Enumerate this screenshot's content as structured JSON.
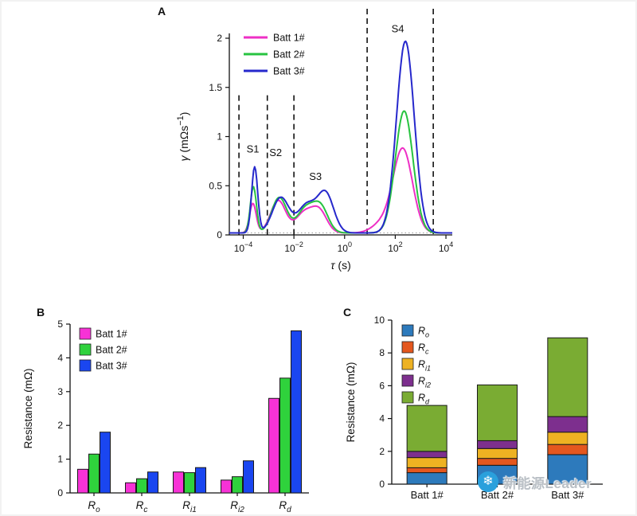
{
  "panel_labels": {
    "A": "A",
    "B": "B",
    "C": "C"
  },
  "watermark": {
    "text": "新能源Leader",
    "icon": "snowflake",
    "icon_color": "#2aa0dc",
    "text_color": "#b9bfc5"
  },
  "chart_data": [
    {
      "panel": "A",
      "type": "line",
      "xlabel_parts": [
        {
          "text": "τ ",
          "italic": true
        },
        {
          "text": "(s)"
        }
      ],
      "ylabel_parts": [
        {
          "text": "γ ",
          "italic": true
        },
        {
          "text": "(mΩs"
        },
        {
          "text": "−1",
          "super": true
        },
        {
          "text": ")"
        }
      ],
      "x_scale": "log10",
      "xlim_log10": [
        -4.55,
        4.25
      ],
      "ylim": [
        0,
        2
      ],
      "yticks": [
        0,
        0.5,
        1,
        1.5,
        2
      ],
      "xticks_exp": [
        -4,
        -2,
        0,
        2,
        4
      ],
      "baseline": 0.02,
      "dashed_boundaries": [
        {
          "log10_x": -4.17,
          "top": 1.42
        },
        {
          "log10_x": -3.05,
          "top": 1.42
        },
        {
          "log10_x": -2.0,
          "top": 1.42
        },
        {
          "log10_x": 0.89,
          "top": 2.3
        },
        {
          "log10_x": 3.5,
          "top": 2.3
        }
      ],
      "stage_labels": [
        {
          "text": "S1",
          "log10_x": -3.62,
          "y": 0.84
        },
        {
          "text": "S2",
          "log10_x": -2.72,
          "y": 0.8
        },
        {
          "text": "S3",
          "log10_x": -1.15,
          "y": 0.56
        },
        {
          "text": "S4",
          "log10_x": 2.1,
          "y": 2.06
        }
      ],
      "series": [
        {
          "name": "Batt 1#",
          "color": "#ee2fc5",
          "peaks": [
            [
              -3.62,
              0.3,
              0.13
            ],
            [
              -2.62,
              0.33,
              0.3
            ],
            [
              -1.6,
              0.2,
              0.33
            ],
            [
              -1.0,
              0.22,
              0.3
            ],
            [
              1.5,
              0.1,
              0.4
            ],
            [
              2.3,
              0.85,
              0.38
            ]
          ]
        },
        {
          "name": "Batt 2#",
          "color": "#27c340",
          "peaks": [
            [
              -3.6,
              0.47,
              0.12
            ],
            [
              -2.58,
              0.36,
              0.3
            ],
            [
              -1.55,
              0.24,
              0.33
            ],
            [
              -0.95,
              0.26,
              0.3
            ],
            [
              2.35,
              1.24,
              0.35
            ]
          ]
        },
        {
          "name": "Batt 3#",
          "color": "#2628cc",
          "peaks": [
            [
              -3.55,
              0.67,
              0.12
            ],
            [
              -2.52,
              0.36,
              0.33
            ],
            [
              -1.5,
              0.28,
              0.35
            ],
            [
              -0.75,
              0.4,
              0.32
            ],
            [
              2.4,
              1.95,
              0.35
            ]
          ]
        }
      ]
    },
    {
      "panel": "B",
      "type": "bar",
      "ylabel": "Resistance (mΩ)",
      "ylim": [
        0,
        5
      ],
      "yticks": [
        0,
        1,
        2,
        3,
        4,
        5
      ],
      "categories": [
        "R_o",
        "R_c",
        "R_i1",
        "R_i2",
        "R_d"
      ],
      "series": [
        {
          "name": "Batt 1#",
          "color": "#f732d6",
          "values": [
            0.7,
            0.3,
            0.62,
            0.38,
            2.8
          ]
        },
        {
          "name": "Batt 2#",
          "color": "#2fd23c",
          "values": [
            1.15,
            0.42,
            0.6,
            0.48,
            3.4
          ]
        },
        {
          "name": "Batt 3#",
          "color": "#1a46f0",
          "values": [
            1.8,
            0.62,
            0.75,
            0.95,
            4.8
          ]
        }
      ]
    },
    {
      "panel": "C",
      "type": "stacked-bar",
      "ylabel": "Resistance (mΩ)",
      "ylim": [
        0,
        10
      ],
      "yticks": [
        0,
        2,
        4,
        6,
        8,
        10
      ],
      "categories": [
        "Batt 1#",
        "Batt 2#",
        "Batt 3#"
      ],
      "series": [
        {
          "name": "R_o",
          "color": "#2d7abc",
          "values": [
            0.7,
            1.15,
            1.8
          ]
        },
        {
          "name": "R_c",
          "color": "#e4571e",
          "values": [
            0.3,
            0.42,
            0.62
          ]
        },
        {
          "name": "R_i1",
          "color": "#eeb222",
          "values": [
            0.62,
            0.6,
            0.75
          ]
        },
        {
          "name": "R_i2",
          "color": "#7d2f8e",
          "values": [
            0.38,
            0.48,
            0.95
          ]
        },
        {
          "name": "R_d",
          "color": "#7aac33",
          "values": [
            2.8,
            3.4,
            4.8
          ]
        }
      ]
    }
  ]
}
